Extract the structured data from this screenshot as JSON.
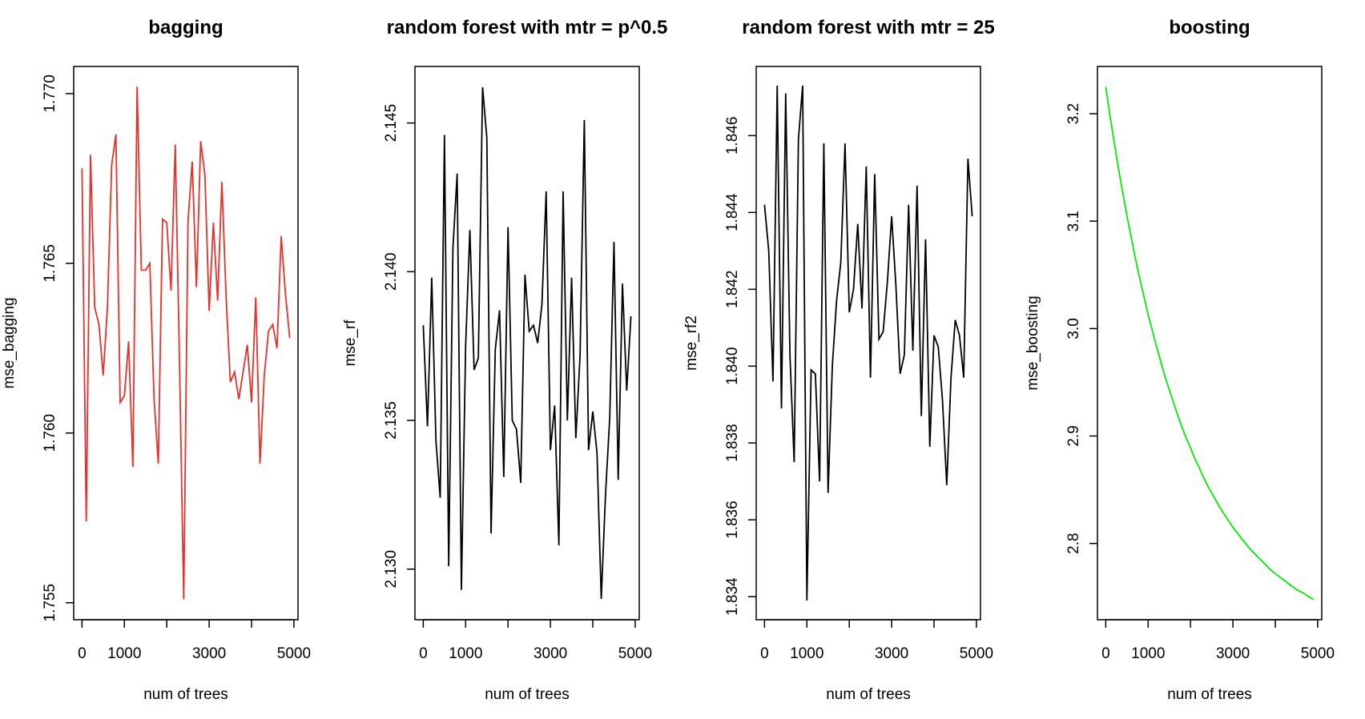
{
  "chart_data": [
    {
      "type": "line",
      "title": "bagging",
      "x_label": "num of trees",
      "y_label": "mse_bagging",
      "color": "#e8302a",
      "x": [
        0,
        100,
        200,
        300,
        400,
        500,
        600,
        700,
        800,
        900,
        1000,
        1100,
        1200,
        1300,
        1400,
        1500,
        1600,
        1700,
        1800,
        1900,
        2000,
        2100,
        2200,
        2300,
        2400,
        2500,
        2600,
        2700,
        2800,
        2900,
        3000,
        3100,
        3200,
        3300,
        3400,
        3500,
        3600,
        3700,
        3800,
        3900,
        4000,
        4100,
        4200,
        4300,
        4400,
        4500,
        4600,
        4700,
        4800,
        4900
      ],
      "values": [
        1.7678,
        1.7574,
        1.7682,
        1.7637,
        1.7632,
        1.7617,
        1.7637,
        1.7679,
        1.7688,
        1.7609,
        1.7611,
        1.7627,
        1.759,
        1.7702,
        1.7648,
        1.7648,
        1.765,
        1.761,
        1.7591,
        1.7663,
        1.7662,
        1.7642,
        1.7685,
        1.7621,
        1.7551,
        1.7662,
        1.768,
        1.7643,
        1.7686,
        1.7676,
        1.7636,
        1.7662,
        1.7639,
        1.7674,
        1.764,
        1.7615,
        1.7618,
        1.761,
        1.7618,
        1.7626,
        1.7609,
        1.764,
        1.7591,
        1.7617,
        1.763,
        1.7632,
        1.7625,
        1.7658,
        1.7641,
        1.7628
      ],
      "xlim": [
        -196,
        5096
      ],
      "ylim": [
        1.7545,
        1.7708
      ],
      "xticks": [
        0,
        1000,
        {
          "value": 2000,
          "label": null
        },
        3000,
        {
          "value": 4000,
          "label": null
        },
        5000
      ],
      "yticks": [
        {
          "value": 1.755,
          "label": "1.755"
        },
        {
          "value": 1.76,
          "label": "1.760"
        },
        {
          "value": 1.765,
          "label": "1.765"
        },
        {
          "value": 1.77,
          "label": "1.770"
        }
      ]
    },
    {
      "type": "line",
      "title": "random forest with mtr = p^0.5",
      "x_label": "num of trees",
      "y_label": "mse_rf",
      "color": "#000000",
      "x": [
        0,
        100,
        200,
        300,
        400,
        500,
        600,
        700,
        800,
        900,
        1000,
        1100,
        1200,
        1300,
        1400,
        1500,
        1600,
        1700,
        1800,
        1900,
        2000,
        2100,
        2200,
        2300,
        2400,
        2500,
        2600,
        2700,
        2800,
        2900,
        3000,
        3100,
        3200,
        3300,
        3400,
        3500,
        3600,
        3700,
        3800,
        3900,
        4000,
        4100,
        4200,
        4300,
        4400,
        4500,
        4600,
        4700,
        4800,
        4900
      ],
      "values": [
        2.1382,
        2.1348,
        2.1398,
        2.1343,
        2.1324,
        2.1446,
        2.1301,
        2.1408,
        2.1433,
        2.1293,
        2.1375,
        2.1414,
        2.1367,
        2.1371,
        2.1462,
        2.1445,
        2.1312,
        2.1374,
        2.1387,
        2.1331,
        2.1415,
        2.135,
        2.1347,
        2.1329,
        2.1399,
        2.138,
        2.1382,
        2.1376,
        2.1389,
        2.1427,
        2.134,
        2.1355,
        2.1308,
        2.1427,
        2.135,
        2.1398,
        2.1344,
        2.1372,
        2.1451,
        2.134,
        2.1353,
        2.1339,
        2.129,
        2.1325,
        2.1351,
        2.141,
        2.133,
        2.1396,
        2.136,
        2.1385
      ],
      "xlim": [
        -196,
        5096
      ],
      "ylim": [
        2.1283,
        2.1469
      ],
      "xticks": [
        0,
        1000,
        {
          "value": 2000,
          "label": null
        },
        3000,
        {
          "value": 4000,
          "label": null
        },
        5000
      ],
      "yticks": [
        {
          "value": 2.13,
          "label": "2.130"
        },
        2.135,
        {
          "value": 2.14,
          "label": "2.140"
        },
        2.145
      ]
    },
    {
      "type": "line",
      "title": "random forest with mtr = 25",
      "x_label": "num of trees",
      "y_label": "mse_rf2",
      "color": "#000000",
      "x": [
        0,
        100,
        200,
        300,
        400,
        500,
        600,
        700,
        800,
        900,
        1000,
        1100,
        1200,
        1300,
        1400,
        1500,
        1600,
        1700,
        1800,
        1900,
        2000,
        2100,
        2200,
        2300,
        2400,
        2500,
        2600,
        2700,
        2800,
        2900,
        3000,
        3100,
        3200,
        3300,
        3400,
        3500,
        3600,
        3700,
        3800,
        3900,
        4000,
        4100,
        4200,
        4300,
        4400,
        4500,
        4600,
        4700,
        4800,
        4900
      ],
      "values": [
        1.8442,
        1.843,
        1.8396,
        1.8473,
        1.8389,
        1.8471,
        1.8403,
        1.8375,
        1.8459,
        1.8473,
        1.8339,
        1.8399,
        1.8398,
        1.837,
        1.8458,
        1.8367,
        1.84,
        1.8417,
        1.8427,
        1.8458,
        1.8414,
        1.842,
        1.8437,
        1.8415,
        1.8452,
        1.8397,
        1.845,
        1.8407,
        1.8409,
        1.8422,
        1.8439,
        1.8421,
        1.8398,
        1.8403,
        1.8442,
        1.8404,
        1.8447,
        1.8387,
        1.8433,
        1.8379,
        1.8408,
        1.8405,
        1.8391,
        1.8369,
        1.8397,
        1.8412,
        1.8408,
        1.8397,
        1.8454,
        1.8439
      ],
      "xlim": [
        -196,
        5096
      ],
      "ylim": [
        1.8334,
        1.8478
      ],
      "xticks": [
        0,
        1000,
        {
          "value": 2000,
          "label": null
        },
        3000,
        {
          "value": 4000,
          "label": null
        },
        5000
      ],
      "yticks": [
        1.834,
        1.836,
        1.838,
        {
          "value": 1.84,
          "label": "1.840"
        },
        1.842,
        1.844,
        1.846
      ]
    },
    {
      "type": "line",
      "title": "boosting",
      "x_label": "num of trees",
      "y_label": "mse_boosting",
      "color": "#00ee00",
      "x": [
        0,
        100,
        200,
        300,
        400,
        500,
        600,
        700,
        800,
        900,
        1000,
        1100,
        1200,
        1300,
        1400,
        1500,
        1600,
        1700,
        1800,
        1900,
        2000,
        2100,
        2200,
        2300,
        2400,
        2500,
        2600,
        2700,
        2800,
        2900,
        3000,
        3100,
        3200,
        3300,
        3400,
        3500,
        3600,
        3700,
        3800,
        3900,
        4000,
        4100,
        4200,
        4300,
        4400,
        4500,
        4600,
        4700,
        4800,
        4900
      ],
      "values": [
        3.225,
        3.198,
        3.173,
        3.149,
        3.127,
        3.105,
        3.085,
        3.065,
        3.047,
        3.03,
        3.013,
        2.998,
        2.983,
        2.969,
        2.955,
        2.943,
        2.931,
        2.919,
        2.908,
        2.898,
        2.889,
        2.879,
        2.871,
        2.862,
        2.854,
        2.847,
        2.84,
        2.833,
        2.827,
        2.821,
        2.815,
        2.81,
        2.805,
        2.8,
        2.795,
        2.791,
        2.787,
        2.783,
        2.779,
        2.775,
        2.772,
        2.769,
        2.766,
        2.763,
        2.76,
        2.757,
        2.755,
        2.753,
        2.75,
        2.748
      ],
      "xlim": [
        -196,
        5096
      ],
      "ylim": [
        2.729,
        3.244
      ],
      "xticks": [
        0,
        1000,
        {
          "value": 2000,
          "label": null
        },
        3000,
        {
          "value": 4000,
          "label": null
        },
        5000
      ],
      "yticks": [
        2.8,
        2.9,
        {
          "value": 3,
          "label": "3.0"
        },
        3.1,
        3.2
      ]
    }
  ]
}
